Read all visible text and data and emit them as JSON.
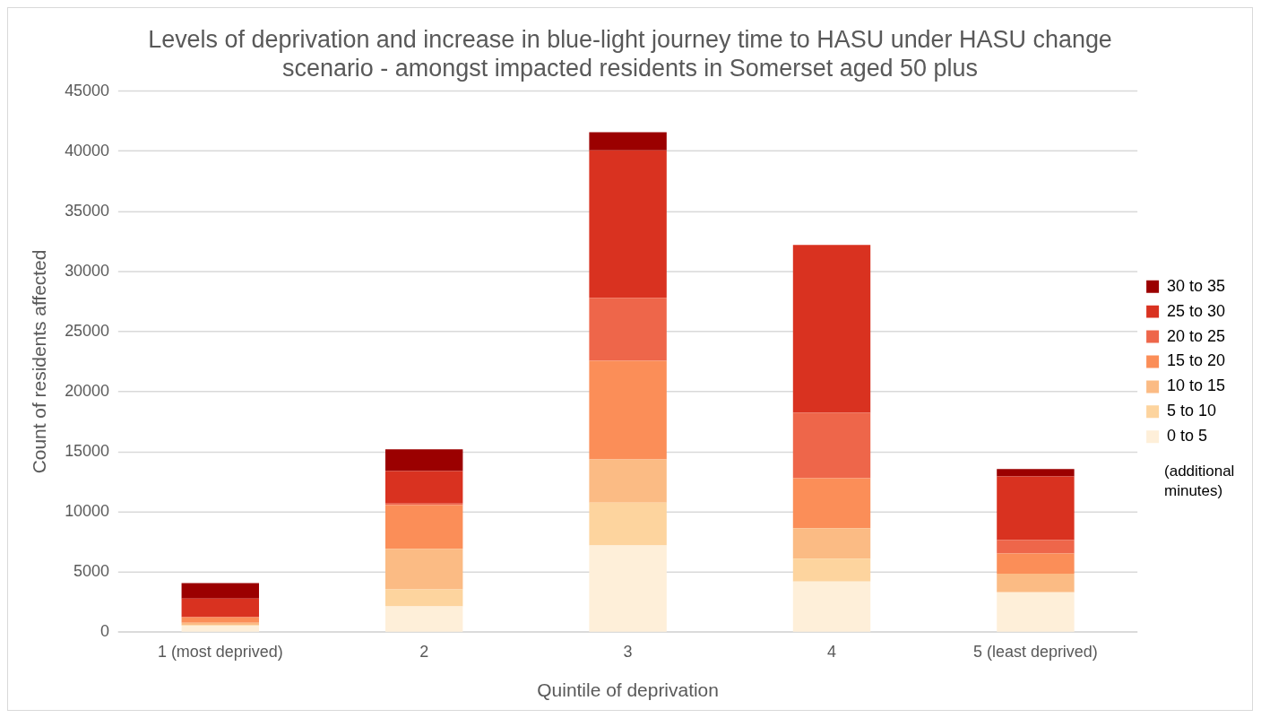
{
  "chart_data": {
    "type": "bar",
    "title": "Levels of deprivation and increase in blue-light journey time to HASU under HASU change scenario - amongst impacted residents in Somerset aged 50 plus",
    "xlabel": "Quintile of deprivation",
    "ylabel": "Count of residents affected",
    "categories": [
      "1 (most deprived)",
      "2",
      "3",
      "4",
      "5 (least deprived)"
    ],
    "stacked": true,
    "legend": "right",
    "grid": "y",
    "ylim": [
      0,
      45000
    ],
    "yticks": [
      0,
      5000,
      10000,
      15000,
      20000,
      25000,
      30000,
      35000,
      40000,
      45000
    ],
    "annotations": [
      "(additional minutes)"
    ],
    "series": [
      {
        "name": "0 to 5",
        "color": "#feefd9",
        "values": [
          550,
          2160,
          7230,
          4220,
          3330
        ]
      },
      {
        "name": "5 to 10",
        "color": "#fdd49e",
        "values": [
          50,
          1420,
          3550,
          1910,
          0
        ]
      },
      {
        "name": "10 to 15",
        "color": "#fbbb84",
        "values": [
          200,
          3370,
          3600,
          2530,
          1540
        ]
      },
      {
        "name": "15 to 20",
        "color": "#fb8e58",
        "values": [
          450,
          3630,
          8190,
          4150,
          1690
        ]
      },
      {
        "name": "20 to 25",
        "color": "#ee664a",
        "values": [
          50,
          120,
          5230,
          5440,
          1110
        ]
      },
      {
        "name": "25 to 30",
        "color": "#d93220",
        "values": [
          1500,
          2710,
          12260,
          13960,
          5290
        ]
      },
      {
        "name": "30 to 35",
        "color": "#9b0000",
        "values": [
          1300,
          1810,
          1510,
          0,
          620
        ]
      }
    ]
  }
}
